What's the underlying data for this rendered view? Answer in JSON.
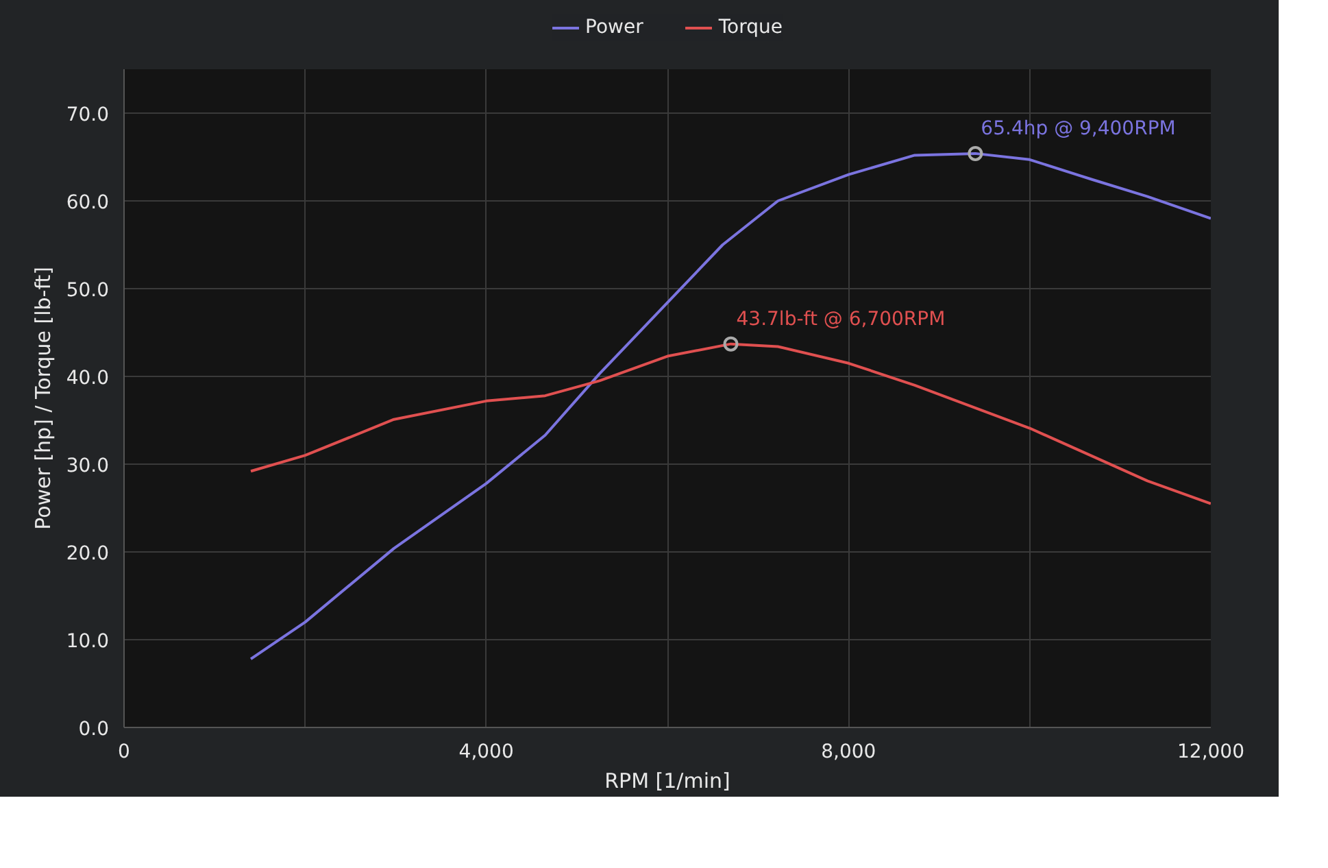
{
  "chart_data": {
    "type": "line",
    "xlabel": "RPM [1/min]",
    "ylabel": "Power [hp] / Torque [lb-ft]",
    "xlim": [
      0,
      12000
    ],
    "ylim": [
      0,
      75
    ],
    "xticks": [
      {
        "value": 0,
        "label": "0"
      },
      {
        "value": 2000,
        "label": null
      },
      {
        "value": 4000,
        "label": "4,000"
      },
      {
        "value": 6000,
        "label": null
      },
      {
        "value": 8000,
        "label": "8,000"
      },
      {
        "value": 10000,
        "label": null
      },
      {
        "value": 12000,
        "label": "12,000"
      }
    ],
    "yticks": [
      {
        "value": 0,
        "label": "0.0"
      },
      {
        "value": 10,
        "label": "10.0"
      },
      {
        "value": 20,
        "label": "20.0"
      },
      {
        "value": 30,
        "label": "30.0"
      },
      {
        "value": 40,
        "label": "40.0"
      },
      {
        "value": 50,
        "label": "50.0"
      },
      {
        "value": 60,
        "label": "60.0"
      },
      {
        "value": 70,
        "label": "70.0"
      }
    ],
    "grid": true,
    "legend": "top",
    "marker": "none",
    "line_style": "solid",
    "series": [
      {
        "name": "Power",
        "color": "#7b74e0",
        "x": [
          1400,
          2000,
          2980,
          4000,
          4650,
          5250,
          6000,
          6610,
          7220,
          8000,
          8730,
          9400,
          10000,
          10700,
          11300,
          12000
        ],
        "values": [
          7.8,
          12,
          20.4,
          27.8,
          33.3,
          40.3,
          48.4,
          55,
          60,
          63,
          65.2,
          65.4,
          64.7,
          62.4,
          60.5,
          58
        ]
      },
      {
        "name": "Torque",
        "color": "#e05050",
        "x": [
          1400,
          2000,
          2980,
          4000,
          4650,
          5250,
          6000,
          6700,
          7220,
          8000,
          8730,
          10000,
          11300,
          12000
        ],
        "values": [
          29.2,
          31,
          35.1,
          37.2,
          37.8,
          39.5,
          42.3,
          43.7,
          43.4,
          41.5,
          39,
          34.1,
          28.1,
          25.5
        ]
      }
    ],
    "annotations": [
      {
        "text": "65.4hp @ 9,400RPM",
        "x": 9400,
        "y": 65.4
      },
      {
        "text": "43.7lb-ft @ 6,700RPM",
        "x": 6700,
        "y": 43.7
      }
    ]
  }
}
